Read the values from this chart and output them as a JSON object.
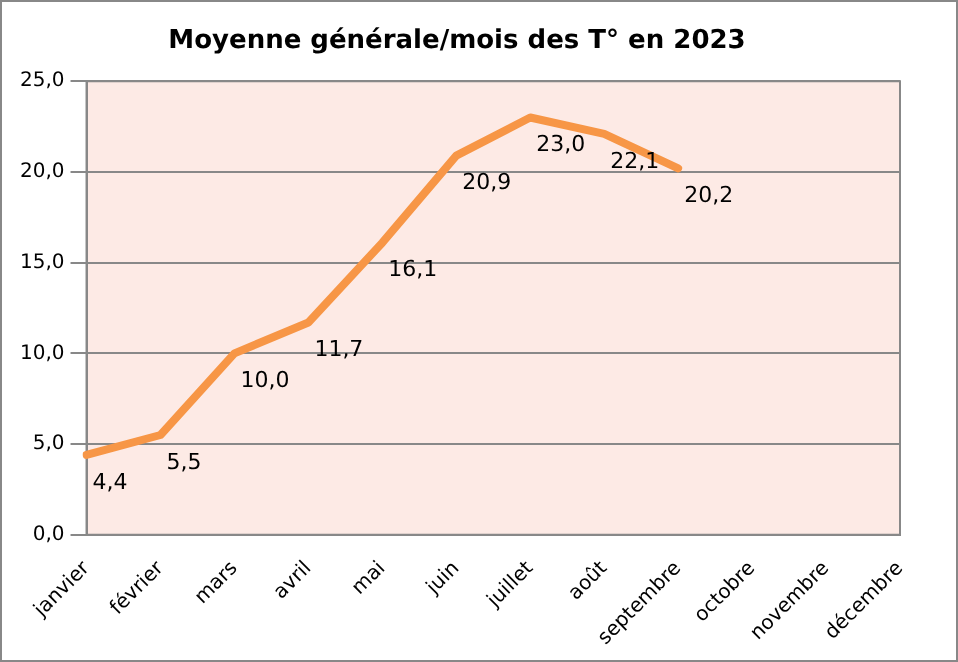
{
  "chart_data": {
    "type": "line",
    "title": "Moyenne générale/mois des T° en 2023",
    "categories": [
      "janvier",
      "février",
      "mars",
      "avril",
      "mai",
      "juin",
      "juillet",
      "août",
      "septembre",
      "octobre",
      "novembre",
      "décembre"
    ],
    "series": [
      {
        "color": "#f79646",
        "values": [
          4.4,
          5.5,
          10.0,
          11.7,
          16.1,
          20.9,
          23.0,
          22.1,
          20.2,
          null,
          null,
          null
        ],
        "value_labels": [
          "4,4",
          "5,5",
          "10,0",
          "11,7",
          "16,1",
          "20,9",
          "23,0",
          "22,1",
          "20,2",
          null,
          null,
          null
        ]
      }
    ],
    "ylim": [
      0,
      25
    ],
    "yticks": [
      {
        "value": 0,
        "label": "0,0"
      },
      {
        "value": 5,
        "label": "5,0"
      },
      {
        "value": 10,
        "label": "10,0"
      },
      {
        "value": 15,
        "label": "15,0"
      },
      {
        "value": 20,
        "label": "20,0"
      },
      {
        "value": 25,
        "label": "25,0"
      }
    ],
    "grid": "y",
    "legend": false,
    "marker": "none",
    "line_style": "solid"
  }
}
